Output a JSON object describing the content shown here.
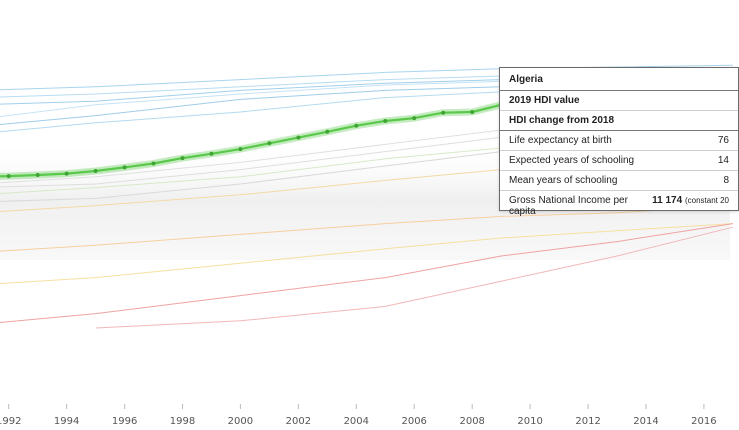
{
  "chart_data": {
    "type": "line",
    "title": "",
    "xlabel": "",
    "ylabel": "",
    "x_ticks": [
      "1992",
      "1994",
      "1996",
      "1998",
      "2000",
      "2002",
      "2004",
      "2006",
      "2008",
      "2010",
      "2012",
      "2014",
      "2016"
    ],
    "xlim": [
      1991.7,
      2016.9
    ],
    "ylim": [
      0,
      1
    ],
    "grid": false,
    "highlight_color": "#5ac84a",
    "series": [
      {
        "name": "Algeria",
        "highlighted": true,
        "x": [
          1991,
          1992,
          1993,
          1994,
          1995,
          1996,
          1997,
          1998,
          1999,
          2000,
          2001,
          2002,
          2003,
          2004,
          2005,
          2006,
          2007,
          2008,
          2009
        ],
        "values": [
          0.62,
          0.622,
          0.625,
          0.629,
          0.636,
          0.646,
          0.657,
          0.672,
          0.684,
          0.697,
          0.713,
          0.729,
          0.745,
          0.762,
          0.775,
          0.783,
          0.798,
          0.8,
          0.82
        ]
      },
      {
        "x": [
          1991,
          1995,
          2000,
          2005,
          2009,
          2013,
          2017
        ],
        "values": [
          0.86,
          0.87,
          0.89,
          0.91,
          0.92,
          0.925,
          0.93
        ],
        "color": "#a9d5ee"
      },
      {
        "x": [
          1991,
          1995,
          2000,
          2005,
          2009,
          2013,
          2017
        ],
        "values": [
          0.84,
          0.85,
          0.87,
          0.89,
          0.9,
          0.91,
          0.915
        ],
        "color": "#b8dcf2"
      },
      {
        "x": [
          1991,
          1995,
          2000,
          2005,
          2009,
          2013,
          2017
        ],
        "values": [
          0.82,
          0.83,
          0.86,
          0.88,
          0.89,
          0.895,
          0.9
        ],
        "color": "#a2d0ec"
      },
      {
        "x": [
          1991,
          1995,
          2000,
          2005,
          2009,
          2013,
          2017
        ],
        "values": [
          0.78,
          0.82,
          0.85,
          0.875,
          0.885,
          0.89,
          0.893
        ],
        "color": "#c6e3f5"
      },
      {
        "x": [
          1991,
          1995,
          2000,
          2005,
          2009,
          2013,
          2017
        ],
        "values": [
          0.76,
          0.79,
          0.835,
          0.86,
          0.87,
          0.885,
          0.888
        ],
        "color": "#9fcdea"
      },
      {
        "x": [
          1991,
          1995,
          2000,
          2005,
          2010,
          2013,
          2015,
          2016,
          2017
        ],
        "values": [
          0.74,
          0.77,
          0.8,
          0.84,
          0.86,
          0.78,
          0.58,
          0.53,
          0.56
        ],
        "color": "#b5daf0"
      },
      {
        "x": [
          1991,
          1995,
          2000,
          2005,
          2009,
          2013,
          2017
        ],
        "values": [
          0.6,
          0.62,
          0.66,
          0.71,
          0.75,
          0.76,
          0.77
        ],
        "color": "#e0e0e0"
      },
      {
        "x": [
          1991,
          1995,
          2000,
          2005,
          2009,
          2013,
          2017
        ],
        "values": [
          0.59,
          0.6,
          0.64,
          0.69,
          0.73,
          0.745,
          0.755
        ],
        "color": "#dedede"
      },
      {
        "x": [
          1991,
          1995,
          2000,
          2005,
          2009,
          2013,
          2017
        ],
        "values": [
          0.57,
          0.59,
          0.62,
          0.67,
          0.7,
          0.715,
          0.725
        ],
        "color": "#d8e8c8"
      },
      {
        "x": [
          1991,
          1995,
          2000,
          2005,
          2009,
          2013,
          2017
        ],
        "values": [
          0.55,
          0.56,
          0.6,
          0.65,
          0.69,
          0.7,
          0.71
        ],
        "color": "#d9d9d9"
      },
      {
        "x": [
          1991,
          1995,
          2000,
          2005,
          2009,
          2013,
          2017
        ],
        "values": [
          0.52,
          0.54,
          0.57,
          0.61,
          0.64,
          0.65,
          0.66
        ],
        "color": "#f3d9a6"
      },
      {
        "x": [
          1991,
          1995,
          2000,
          2005,
          2009,
          2013,
          2017
        ],
        "values": [
          0.41,
          0.43,
          0.46,
          0.49,
          0.51,
          0.52,
          0.54
        ],
        "color": "#f7cfa0"
      },
      {
        "x": [
          1991,
          1995,
          2000,
          2005,
          2009,
          2013,
          2017
        ],
        "values": [
          0.32,
          0.34,
          0.38,
          0.42,
          0.45,
          0.47,
          0.49
        ],
        "color": "#f6e0a0"
      },
      {
        "x": [
          1991,
          1995,
          2000,
          2005,
          2009,
          2013,
          2017
        ],
        "values": [
          0.21,
          0.24,
          0.29,
          0.34,
          0.4,
          0.44,
          0.49
        ],
        "color": "#f0a3a3"
      },
      {
        "x": [
          1995,
          2000,
          2005,
          2009,
          2013,
          2017
        ],
        "values": [
          0.2,
          0.22,
          0.26,
          0.33,
          0.4,
          0.48
        ],
        "color": "#f2b8b8"
      }
    ]
  },
  "tooltip": {
    "title": "Algeria",
    "rows": [
      {
        "label": "2019 HDI value",
        "value": "",
        "bold": true
      },
      {
        "label": "HDI change from 2018",
        "value": "",
        "bold": true
      },
      {
        "label": "Life expectancy at birth",
        "value": "76"
      },
      {
        "label": "Expected years of schooling",
        "value": "14"
      },
      {
        "label": "Mean years of schooling",
        "value": "8"
      },
      {
        "label": "Gross National Income per capita",
        "value": "11 174",
        "value_suffix": "(constant 20"
      }
    ]
  }
}
